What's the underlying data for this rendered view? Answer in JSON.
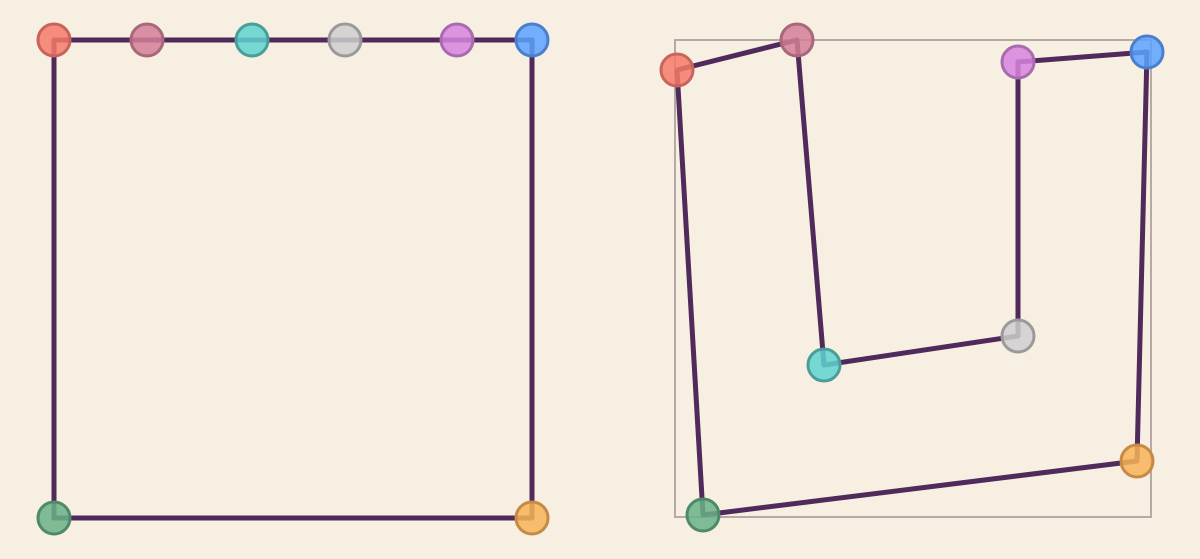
{
  "background": "#f6efe2",
  "edge_color": "#4f2a5a",
  "nodes": [
    {
      "id": "red",
      "fill": "#f47a6a",
      "stroke": "#c8645c"
    },
    {
      "id": "rose",
      "fill": "#d47f96",
      "stroke": "#a8677a"
    },
    {
      "id": "teal",
      "fill": "#5fd3d0",
      "stroke": "#4a9d9b"
    },
    {
      "id": "gray",
      "fill": "#cfcfcf",
      "stroke": "#9a9a9a"
    },
    {
      "id": "violet",
      "fill": "#d884de",
      "stroke": "#a86cae"
    },
    {
      "id": "blue",
      "fill": "#5aa2ff",
      "stroke": "#4a7fcf"
    },
    {
      "id": "orange",
      "fill": "#f7b457",
      "stroke": "#c58a45"
    },
    {
      "id": "green",
      "fill": "#6ab187",
      "stroke": "#4e8a68"
    }
  ],
  "panels": [
    {
      "id": "left-layout",
      "edges": [
        [
          "red",
          "blue"
        ],
        [
          "blue",
          "orange"
        ],
        [
          "orange",
          "green"
        ],
        [
          "green",
          "red"
        ]
      ]
    },
    {
      "id": "right-layout",
      "edges": [
        [
          "red",
          "rose"
        ],
        [
          "rose",
          "teal"
        ],
        [
          "teal",
          "gray"
        ],
        [
          "gray",
          "violet"
        ],
        [
          "violet",
          "blue"
        ],
        [
          "blue",
          "orange"
        ],
        [
          "orange",
          "green"
        ],
        [
          "green",
          "red"
        ]
      ]
    }
  ]
}
